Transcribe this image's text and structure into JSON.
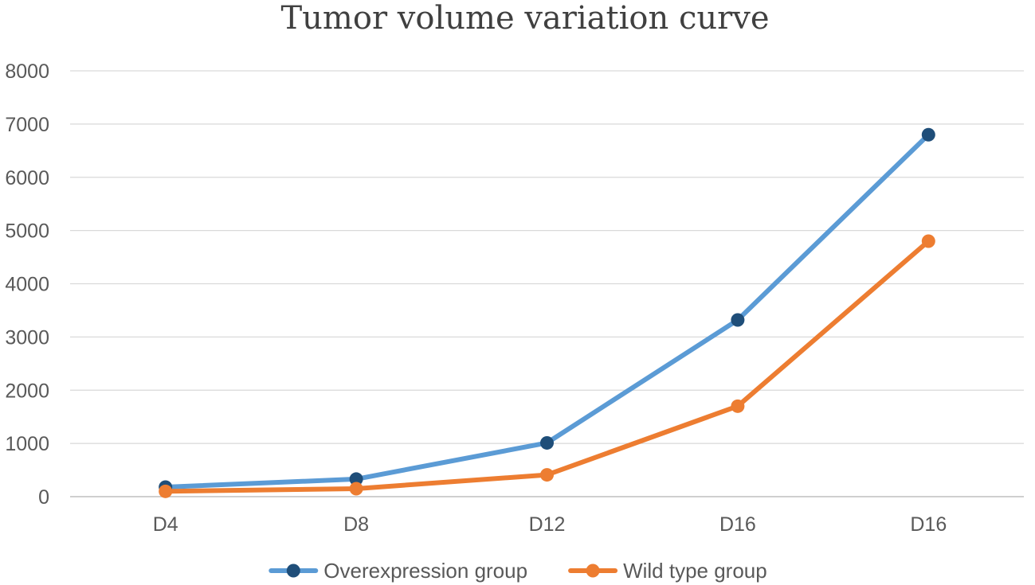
{
  "chart_data": {
    "type": "line",
    "title": "Tumor volume variation curve",
    "xlabel": "",
    "ylabel": "",
    "categories": [
      "D4",
      "D8",
      "D12",
      "D16",
      "D16"
    ],
    "ylim": [
      0,
      8000
    ],
    "yticks": [
      0,
      1000,
      2000,
      3000,
      4000,
      5000,
      6000,
      7000,
      8000
    ],
    "grid": true,
    "legend_position": "bottom",
    "series": [
      {
        "name": "Overexpression group",
        "values": [
          180,
          330,
          1010,
          3320,
          6800
        ],
        "line_color": "#5B9BD5",
        "marker_color": "#1F4E79"
      },
      {
        "name": "Wild type group",
        "values": [
          100,
          150,
          410,
          1700,
          4800
        ],
        "line_color": "#ED7D31",
        "marker_color": "#ED7D31"
      }
    ]
  }
}
